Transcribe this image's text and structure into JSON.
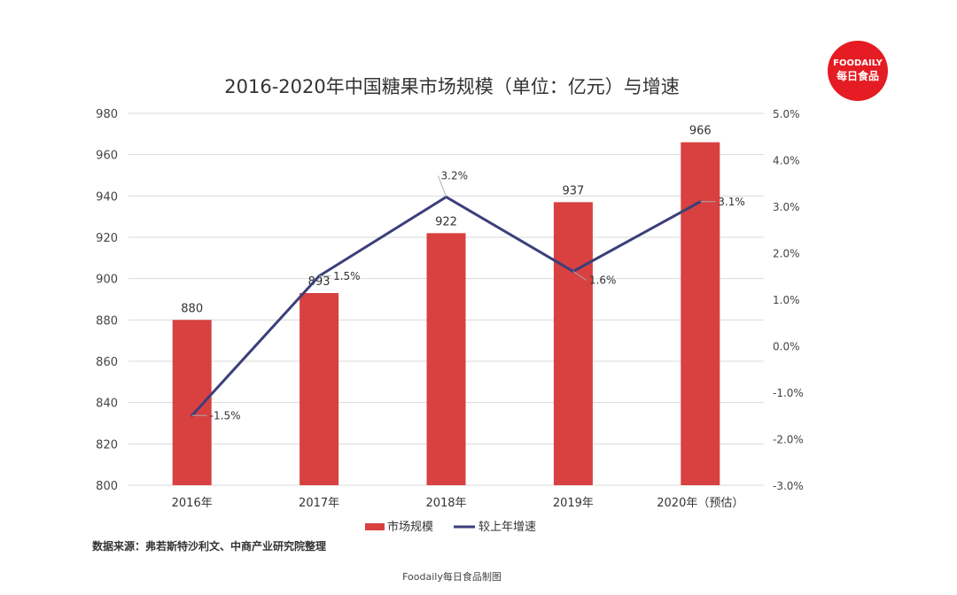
{
  "chart_data": {
    "type": "bar+line",
    "title": "2016-2020年中国糖果市场规模（单位：亿元）与增速",
    "categories": [
      "2016年",
      "2017年",
      "2018年",
      "2019年",
      "2020年（预估）"
    ],
    "series": [
      {
        "name": "市场规模",
        "type": "bar",
        "axis": "left",
        "values": [
          880,
          893,
          922,
          937,
          966
        ],
        "labels": [
          "880",
          "893",
          "922",
          "937",
          "966"
        ],
        "color": "#d94040"
      },
      {
        "name": "较上年增速",
        "type": "line",
        "axis": "right",
        "values": [
          -1.5,
          1.5,
          3.2,
          1.6,
          3.1
        ],
        "labels": [
          "-1.5%",
          "1.5%",
          "3.2%",
          "1.6%",
          "3.1%"
        ],
        "color": "#3b3f7a"
      }
    ],
    "ylim": [
      800,
      980
    ],
    "yticks": [
      "800",
      "820",
      "840",
      "860",
      "880",
      "900",
      "920",
      "940",
      "960",
      "980"
    ],
    "y2lim": [
      -3.0,
      5.0
    ],
    "y2ticks": [
      "-3.0%",
      "-2.0%",
      "-1.0%",
      "0.0%",
      "1.0%",
      "2.0%",
      "3.0%",
      "4.0%",
      "5.0%"
    ],
    "grid": true,
    "legend": "bottom"
  },
  "logo": {
    "en": "FOODAILY",
    "cn": "每日食品",
    "color": "#e51c23"
  },
  "source": "数据来源：弗若斯特沙利文、中商产业研究院整理",
  "credit": "Foodaily每日食品制图"
}
